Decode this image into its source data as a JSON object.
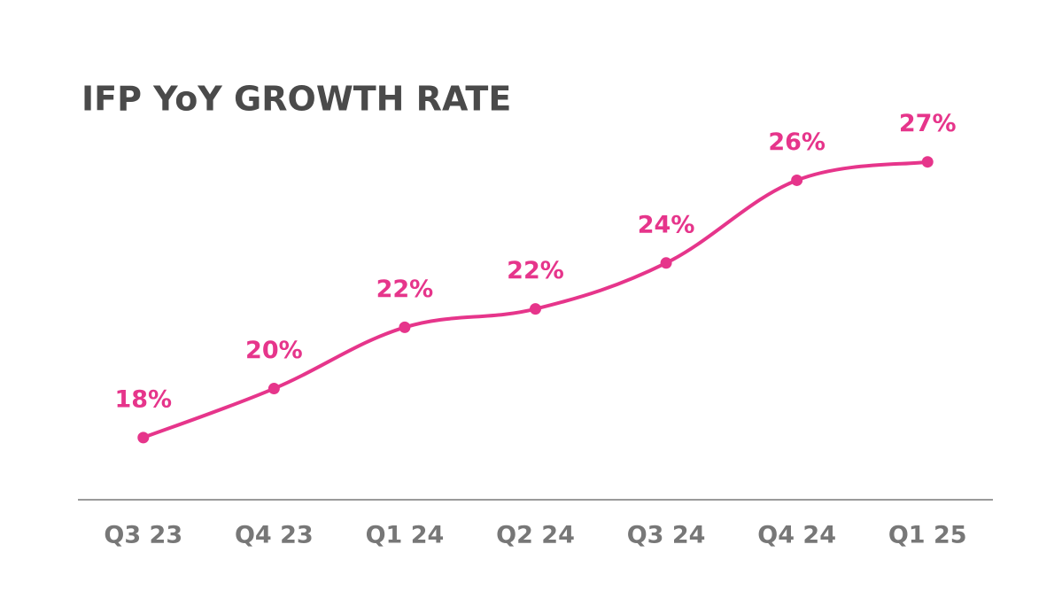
{
  "chart_data": {
    "type": "line",
    "title": "IFP YoY GROWTH RATE",
    "categories": [
      "Q3 23",
      "Q4 23",
      "Q1 24",
      "Q2 24",
      "Q3 24",
      "Q4 24",
      "Q1 25"
    ],
    "series": [
      {
        "name": "IFP YoY growth rate",
        "color": "#e6358b",
        "values": [
          18.0,
          19.6,
          21.6,
          22.2,
          23.7,
          26.4,
          27.0
        ],
        "value_labels": [
          "18%",
          "20%",
          "22%",
          "22%",
          "24%",
          "26%",
          "27%"
        ]
      }
    ],
    "ylim": [
      16,
      30
    ]
  }
}
